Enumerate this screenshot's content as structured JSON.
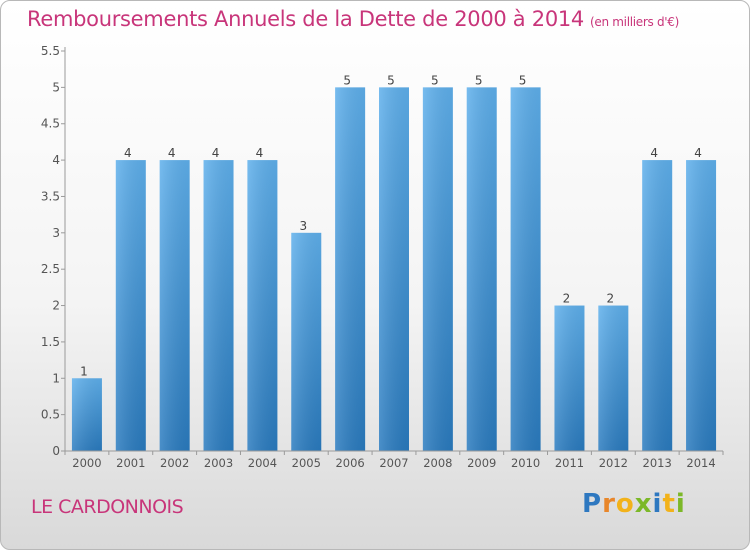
{
  "header": {
    "title": "Remboursements Annuels de la Dette de 2000 à 2014",
    "unit": "(en milliers d'€)"
  },
  "footer": {
    "place": "LE CARDONNOIS",
    "logo": "Proxiti"
  },
  "colors": {
    "accent": "#c8357a",
    "bar_top": "#5fb0ec",
    "bar_bottom": "#2a7bbf"
  },
  "chart_data": {
    "type": "bar",
    "title": "Remboursements Annuels de la Dette de 2000 à 2014",
    "xlabel": "",
    "ylabel": "",
    "categories": [
      "2000",
      "2001",
      "2002",
      "2003",
      "2004",
      "2005",
      "2006",
      "2007",
      "2008",
      "2009",
      "2010",
      "2011",
      "2012",
      "2013",
      "2014"
    ],
    "values": [
      1,
      4,
      4,
      4,
      4,
      3,
      5,
      5,
      5,
      5,
      5,
      2,
      2,
      4,
      4
    ],
    "ylim": [
      0,
      5.5
    ],
    "yticks": [
      "0",
      "0.5",
      "1",
      "1.5",
      "2",
      "2.5",
      "3",
      "3.5",
      "4",
      "4.5",
      "5",
      "5.5"
    ],
    "grid": false,
    "data_labels": true
  }
}
